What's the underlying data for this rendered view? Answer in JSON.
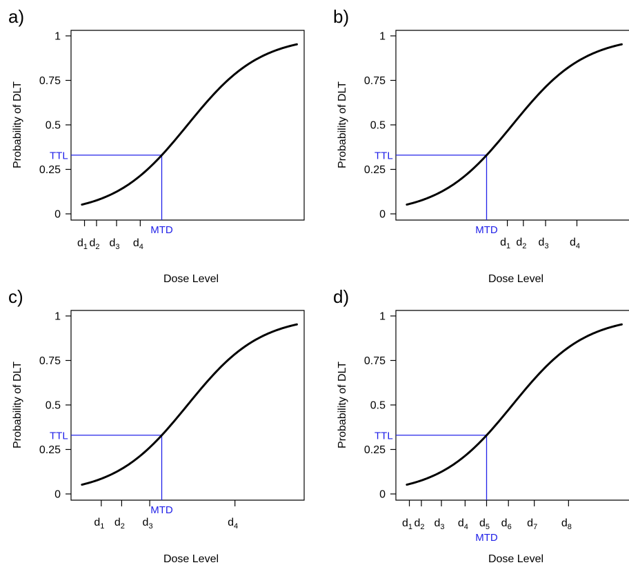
{
  "colors": {
    "curve": "#000000",
    "reference_lines": "#2020e8",
    "axes": "#000000"
  },
  "chart_data": [
    {
      "type": "line",
      "panel_label": "a)",
      "xlabel": "Dose Level",
      "ylabel": "Probability of DLT",
      "ylim": [
        0,
        1
      ],
      "yticks": [
        0,
        0.25,
        0.5,
        0.75,
        1
      ],
      "ytick_labels": [
        "0",
        "0.25",
        "0.5",
        "0.75",
        "1"
      ],
      "xlim": [
        -3.2,
        3.2
      ],
      "curve_x_range": [
        -2.9,
        3.0
      ],
      "curve": "logistic",
      "ttl_label": "TTL",
      "ttl": 0.33,
      "mtd_label": "MTD",
      "mtd_x": -0.71,
      "mtd_label_position": "below-axis",
      "dose_label_row": "row1",
      "doses": [
        {
          "base": "d",
          "sub": "1",
          "x": -2.83
        },
        {
          "base": "d",
          "sub": "2",
          "x": -2.5
        },
        {
          "base": "d",
          "sub": "3",
          "x": -1.95
        },
        {
          "base": "d",
          "sub": "4",
          "x": -1.3
        }
      ]
    },
    {
      "type": "line",
      "panel_label": "b)",
      "xlabel": "Dose Level",
      "ylabel": "Probability of DLT",
      "ylim": [
        0,
        1
      ],
      "yticks": [
        0,
        0.25,
        0.5,
        0.75,
        1
      ],
      "ytick_labels": [
        "0",
        "0.25",
        "0.5",
        "0.75",
        "1"
      ],
      "xlim": [
        -3.2,
        3.2
      ],
      "curve_x_range": [
        -2.9,
        3.0
      ],
      "curve": "logistic",
      "ttl_label": "TTL",
      "ttl": 0.33,
      "mtd_label": "MTD",
      "mtd_x": -0.71,
      "mtd_label_position": "below-axis",
      "dose_label_row": "row2",
      "doses": [
        {
          "base": "d",
          "sub": "1",
          "x": -0.14
        },
        {
          "base": "d",
          "sub": "2",
          "x": 0.3
        },
        {
          "base": "d",
          "sub": "3",
          "x": 0.91
        },
        {
          "base": "d",
          "sub": "4",
          "x": 1.77
        }
      ]
    },
    {
      "type": "line",
      "panel_label": "c)",
      "xlabel": "Dose Level",
      "ylabel": "Probability of DLT",
      "ylim": [
        0,
        1
      ],
      "yticks": [
        0,
        0.25,
        0.5,
        0.75,
        1
      ],
      "ytick_labels": [
        "0",
        "0.25",
        "0.5",
        "0.75",
        "1"
      ],
      "xlim": [
        -3.2,
        3.2
      ],
      "curve_x_range": [
        -2.9,
        3.0
      ],
      "curve": "logistic",
      "ttl_label": "TTL",
      "ttl": 0.33,
      "mtd_label": "MTD",
      "mtd_x": -0.71,
      "mtd_label_position": "below-axis",
      "dose_label_row": "row2",
      "doses": [
        {
          "base": "d",
          "sub": "1",
          "x": -2.37
        },
        {
          "base": "d",
          "sub": "2",
          "x": -1.81
        },
        {
          "base": "d",
          "sub": "3",
          "x": -1.04
        },
        {
          "base": "d",
          "sub": "4",
          "x": 1.3
        }
      ]
    },
    {
      "type": "line",
      "panel_label": "d)",
      "xlabel": "Dose Level",
      "ylabel": "Probability of DLT",
      "ylim": [
        0,
        1
      ],
      "yticks": [
        0,
        0.25,
        0.5,
        0.75,
        1
      ],
      "ytick_labels": [
        "0",
        "0.25",
        "0.5",
        "0.75",
        "1"
      ],
      "xlim": [
        -3.2,
        3.2
      ],
      "curve_x_range": [
        -2.9,
        3.0
      ],
      "curve": "logistic",
      "ttl_label": "TTL",
      "ttl": 0.33,
      "mtd_label": "MTD",
      "mtd_x": -0.71,
      "mtd_label_position": "below-dose",
      "dose_label_row": "row1",
      "doses": [
        {
          "base": "d",
          "sub": "1",
          "x": -2.83
        },
        {
          "base": "d",
          "sub": "2",
          "x": -2.5
        },
        {
          "base": "d",
          "sub": "3",
          "x": -1.95
        },
        {
          "base": "d",
          "sub": "4",
          "x": -1.3
        },
        {
          "base": "d",
          "sub": "5",
          "x": -0.71
        },
        {
          "base": "d",
          "sub": "6",
          "x": -0.11
        },
        {
          "base": "d",
          "sub": "7",
          "x": 0.6
        },
        {
          "base": "d",
          "sub": "8",
          "x": 1.54
        }
      ]
    }
  ]
}
